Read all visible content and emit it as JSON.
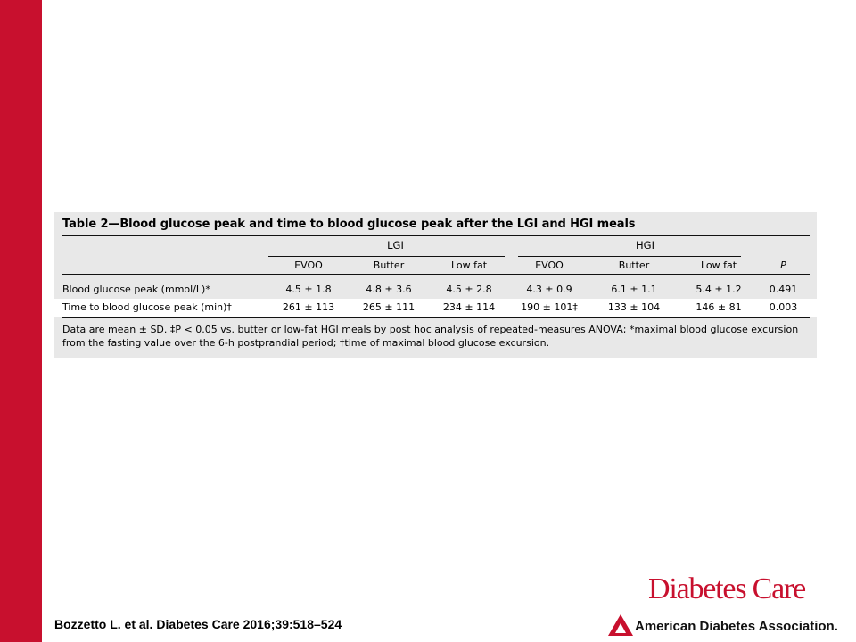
{
  "table": {
    "title": "Table 2—Blood glucose peak and time to blood glucose peak after the LGI and HGI meals",
    "groups": [
      "LGI",
      "HGI"
    ],
    "columns": [
      "EVOO",
      "Butter",
      "Low fat",
      "EVOO",
      "Butter",
      "Low fat",
      "P"
    ],
    "rows": [
      {
        "label": "Blood glucose peak (mmol/L)*",
        "cells": [
          "4.5 ± 1.8",
          "4.8 ± 3.6",
          "4.5 ± 2.8",
          "4.3 ± 0.9",
          "6.1 ± 1.1",
          "5.4 ± 1.2",
          "0.491"
        ]
      },
      {
        "label": "Time to blood glucose peak (min)†",
        "cells": [
          "261 ± 113",
          "265 ± 111",
          "234 ± 114",
          "190 ± 101‡",
          "133 ± 104",
          "146 ± 81",
          "0.003"
        ]
      }
    ],
    "footnote": "Data are mean ± SD. ‡P < 0.05 vs. butter or low-fat HGI meals by post hoc analysis of repeated-measures ANOVA; *maximal blood glucose excursion from the fasting value over the 6-h postprandial period; †time of maximal blood glucose excursion."
  },
  "citation": "Bozzetto L. et al. Diabetes Care 2016;39:518–524",
  "brand": {
    "journal": "Diabetes Care",
    "association": "American Diabetes Association."
  },
  "colors": {
    "accent_red": "#c8102e",
    "table_background": "#e8e8e8"
  }
}
